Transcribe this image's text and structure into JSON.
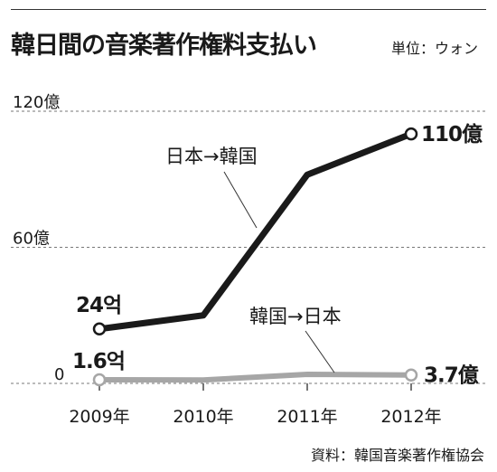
{
  "title": "韓日間の音楽著作権料支払い",
  "unit_label": "単位：ウォン",
  "source": "資料：韓国音楽著作権協会",
  "chart_data": {
    "type": "line",
    "categories": [
      "2009年",
      "2010年",
      "2011年",
      "2012年"
    ],
    "x": [
      2009,
      2010,
      2011,
      2012
    ],
    "ylim": [
      0,
      120
    ],
    "y_ticks": [
      {
        "value": 0,
        "label": "0"
      },
      {
        "value": 60,
        "label": "60億"
      },
      {
        "value": 120,
        "label": "120億"
      }
    ],
    "grid": "horizontal dashed",
    "series": [
      {
        "name": "日本→韓国",
        "values": [
          24,
          30,
          92,
          110
        ],
        "color": "#1a1a1a",
        "start_label": "24억",
        "end_label": "110億"
      },
      {
        "name": "韓国→日本",
        "values": [
          1.6,
          1.5,
          4.0,
          3.7
        ],
        "color": "#a6a6a6",
        "start_label": "1.6억",
        "end_label": "3.7億"
      }
    ]
  }
}
